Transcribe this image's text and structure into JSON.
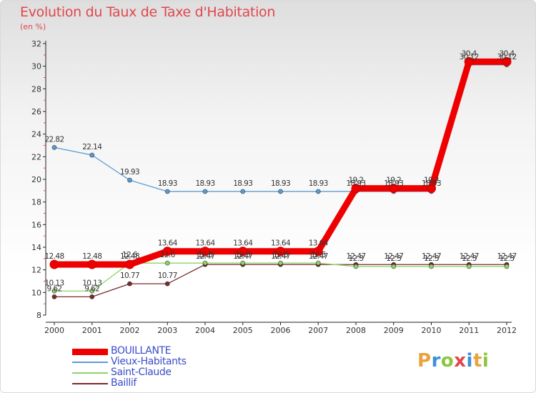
{
  "header": {
    "title": "Evolution du Taux de Taxe d'Habitation",
    "subtitle": "(en %)"
  },
  "logo": {
    "text": "Proxiti",
    "letter_colors": [
      "#e8a33d",
      "#3c8fd8",
      "#8cc63f",
      "#e0474c",
      "#3c8fd8",
      "#e8a33d",
      "#8cc63f"
    ]
  },
  "chart_data": {
    "type": "line",
    "title": "Evolution du Taux de Taxe d'Habitation",
    "subtitle": "(en %)",
    "xlabel": "",
    "ylabel": "",
    "x": [
      "2000",
      "2001",
      "2002",
      "2003",
      "2004",
      "2005",
      "2006",
      "2007",
      "2008",
      "2009",
      "2010",
      "2011",
      "2012"
    ],
    "ylim": [
      8,
      32
    ],
    "yticks": [
      8,
      10,
      12,
      14,
      16,
      18,
      20,
      22,
      24,
      26,
      28,
      30,
      32
    ],
    "grid": false,
    "legend_position": "bottom-left",
    "series": [
      {
        "name": "BOUILLANTE",
        "color": "#ee0000",
        "values": [
          12.48,
          12.48,
          12.48,
          13.64,
          13.64,
          13.64,
          13.64,
          13.64,
          19.2,
          19.2,
          19.2,
          30.4,
          30.4
        ],
        "labels": [
          "12.48",
          "12.48",
          "12.48",
          "13.64",
          "13.64",
          "13.64",
          "13.64",
          "13.64",
          "19.2",
          "19.2",
          "19.2",
          "30.4",
          "30.4"
        ]
      },
      {
        "name": "Vieux-Habitants",
        "color": "#5b9bd5",
        "values": [
          22.82,
          22.14,
          19.93,
          18.93,
          18.93,
          18.93,
          18.93,
          18.93,
          18.93,
          18.93,
          18.93,
          30.12,
          30.12
        ],
        "labels": [
          "22.82",
          "22.14",
          "19.93",
          "18.93",
          "18.93",
          "18.93",
          "18.93",
          "18.93",
          "18.93",
          "18.93",
          "18.93",
          "30.12",
          "30.12"
        ]
      },
      {
        "name": "Saint-Claude",
        "color": "#8fd36a",
        "values": [
          10.13,
          10.13,
          12.6,
          12.6,
          12.6,
          12.6,
          12.6,
          12.6,
          12.3,
          12.3,
          12.3,
          12.3,
          12.3
        ],
        "labels": [
          "10.13",
          "10.13",
          "12.6",
          "12.6",
          "12.6",
          "12.6",
          "12.6",
          "12.6",
          "12.3",
          "12.3",
          "12.3",
          "12.3",
          "12.3"
        ]
      },
      {
        "name": "Baillif",
        "color": "#7a2b2b",
        "values": [
          9.62,
          9.62,
          10.77,
          10.77,
          12.47,
          12.47,
          12.47,
          12.47,
          12.47,
          12.47,
          12.47,
          12.47,
          12.47
        ],
        "labels": [
          "9.62",
          "9.62",
          "10.77",
          "10.77",
          "12.47",
          "12.47",
          "12.47",
          "12.47",
          "12.47",
          "12.47",
          "12.47",
          "12.47",
          "12.47"
        ]
      }
    ]
  }
}
